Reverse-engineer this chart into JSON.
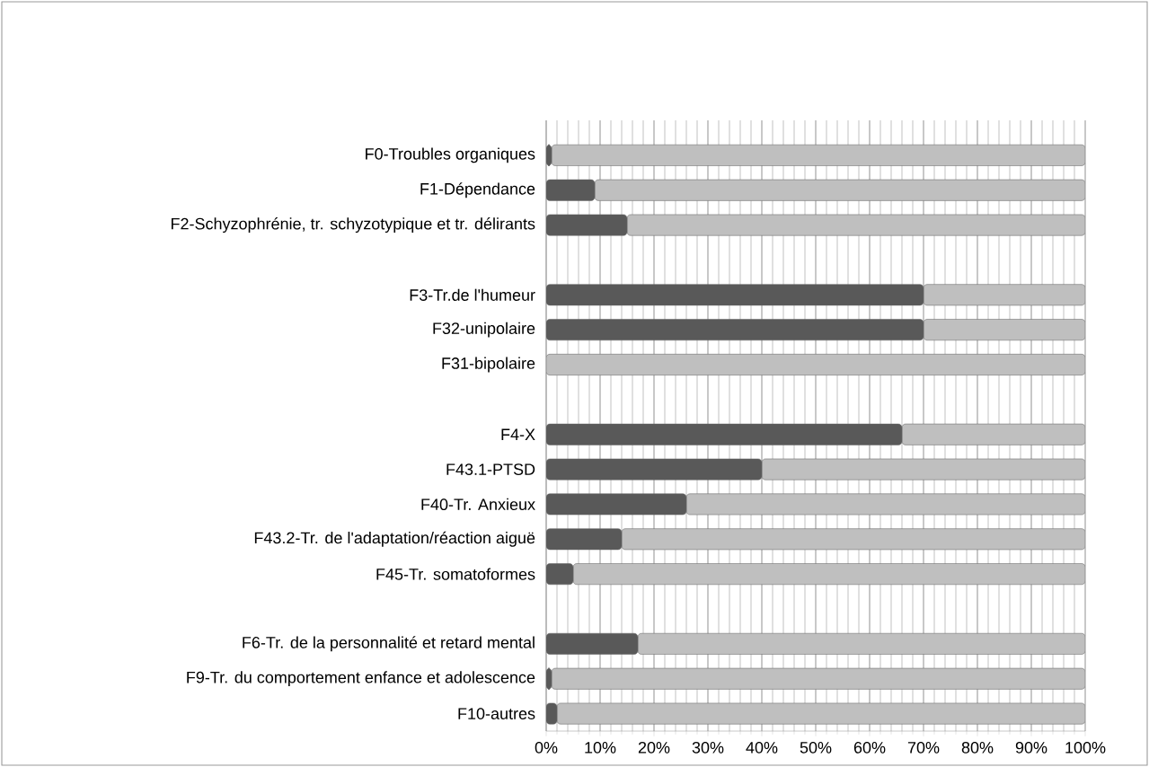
{
  "chart_data": {
    "type": "bar",
    "orientation": "horizontal",
    "stacked": true,
    "grid": "x",
    "categories": [
      "F0-Troubles organiques",
      "F1-Dépendance",
      "F2-Schyzophrénie, tr. schyzotypique et tr. délirants",
      null,
      "F3-Tr.de l'humeur",
      "F32-unipolaire",
      "F31-bipolaire",
      null,
      "F4-X",
      "F43.1-PTSD",
      "F40-Tr. Anxieux",
      "F43.2-Tr. de l'adaptation/réaction aiguë",
      "F45-Tr. somatoformes",
      null,
      "F6-Tr. de la personnalité et retard mental",
      "F9-Tr. du comportement enfance et adolescence",
      "F10-autres"
    ],
    "series": [
      {
        "color": "#595959",
        "values": [
          1,
          9,
          15,
          null,
          70,
          70,
          0,
          null,
          66,
          40,
          26,
          14,
          5,
          null,
          17,
          1,
          2
        ]
      },
      {
        "color": "#bfbfbf",
        "values": [
          99,
          91,
          85,
          null,
          30,
          30,
          100,
          null,
          34,
          60,
          74,
          86,
          95,
          null,
          83,
          99,
          98
        ]
      }
    ],
    "xlim": [
      0,
      100
    ],
    "xticks": [
      {
        "value": 0,
        "label": "0%"
      },
      {
        "value": 10,
        "label": "10%"
      },
      {
        "value": 20,
        "label": "20%"
      },
      {
        "value": 30,
        "label": "30%"
      },
      {
        "value": 40,
        "label": "40%"
      },
      {
        "value": 50,
        "label": "50%"
      },
      {
        "value": 60,
        "label": "60%"
      },
      {
        "value": 70,
        "label": "70%"
      },
      {
        "value": 80,
        "label": "80%"
      },
      {
        "value": 90,
        "label": "90%"
      },
      {
        "value": 100,
        "label": "100%"
      }
    ]
  }
}
